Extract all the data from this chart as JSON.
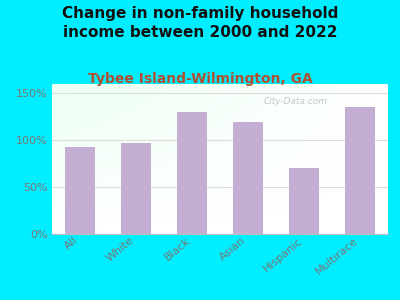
{
  "title": "Change in non-family household\nincome between 2000 and 2022",
  "subtitle": "Tybee Island-Wilmington, GA",
  "categories": [
    "All",
    "White",
    "Black",
    "Asian",
    "Hispanic",
    "Multirace"
  ],
  "values": [
    93,
    97,
    130,
    120,
    70,
    136
  ],
  "bar_color": "#c4aed4",
  "background_outer": "#00eeff",
  "ylim": [
    0,
    160
  ],
  "yticks": [
    0,
    50,
    100,
    150
  ],
  "title_fontsize": 11,
  "title_color": "#111111",
  "subtitle_fontsize": 10,
  "subtitle_color": "#b05030",
  "tick_color": "#777777",
  "tick_fontsize": 8,
  "watermark": "City-Data.com"
}
